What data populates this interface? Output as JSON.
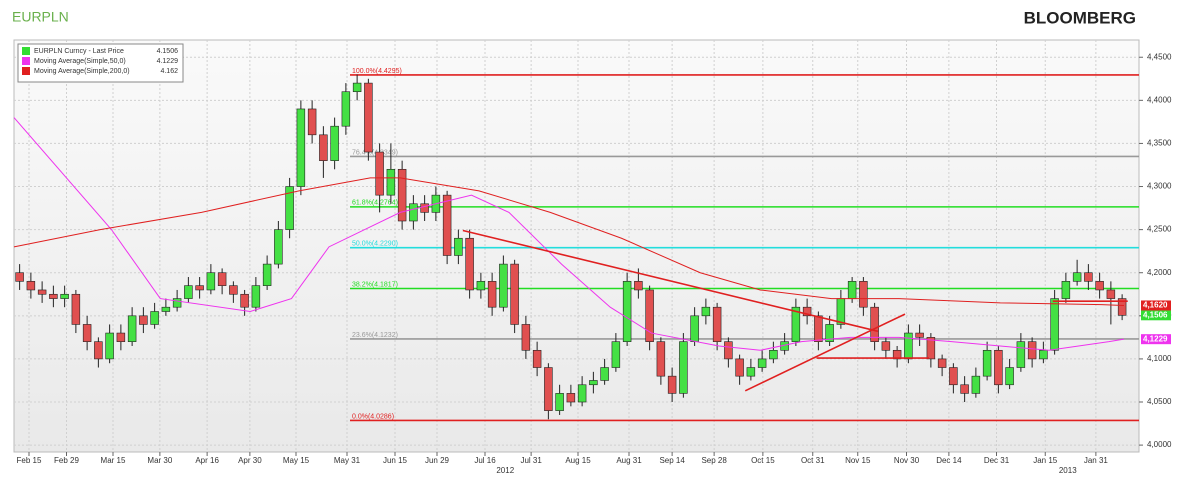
{
  "title": "EURPLN",
  "brand": "BLOOMBERG",
  "chart_data": {
    "type": "candlestick",
    "x": [
      1.5,
      4.5,
      7.5,
      10.5,
      13.5,
      16.5,
      19.5,
      22.5,
      25.5,
      28.5,
      31.5,
      34.5,
      37.5,
      40.5,
      43.5,
      46.5,
      49.5,
      52.5,
      55.5,
      58.5,
      61.5,
      64.5,
      67.5,
      70.5,
      73.5,
      76.5,
      79.5,
      82.5,
      85.5,
      88.5,
      91.5,
      94.5,
      97.5,
      100.5,
      103.5,
      106.5,
      109.5,
      112.5,
      115.5,
      118.5,
      121.5,
      124.5,
      127.5,
      130.5,
      133.5,
      136.5,
      139.5,
      142.5,
      145.5,
      148.5,
      151.5,
      154.5,
      157.5,
      160.5,
      163.5,
      166.5,
      169.5,
      172.5,
      175.5,
      178.5,
      181.5,
      184.5,
      187.5,
      190.5,
      193.5,
      196.5,
      199.5,
      202.5,
      205.5,
      208.5,
      211.5,
      214.5,
      217.5,
      220.5,
      223.5,
      226.5,
      229.5,
      232.5,
      235.5,
      238.5,
      241.5,
      244.5,
      247.5,
      250.5,
      253.5,
      256.5,
      259.5,
      262.5,
      265.5,
      268.5,
      271.5,
      274.5,
      277.5,
      280.5,
      283.5,
      286.5,
      289.5,
      292.5,
      295.5
    ],
    "open": [
      4.2,
      4.19,
      4.18,
      4.175,
      4.17,
      4.175,
      4.14,
      4.12,
      4.1,
      4.13,
      4.12,
      4.15,
      4.14,
      4.155,
      4.16,
      4.17,
      4.185,
      4.18,
      4.2,
      4.185,
      4.175,
      4.16,
      4.185,
      4.21,
      4.25,
      4.3,
      4.39,
      4.36,
      4.33,
      4.37,
      4.41,
      4.42,
      4.34,
      4.29,
      4.32,
      4.26,
      4.28,
      4.27,
      4.29,
      4.22,
      4.24,
      4.18,
      4.19,
      4.16,
      4.21,
      4.14,
      4.11,
      4.09,
      4.04,
      4.06,
      4.05,
      4.07,
      4.075,
      4.09,
      4.12,
      4.19,
      4.18,
      4.12,
      4.08,
      4.06,
      4.12,
      4.15,
      4.16,
      4.12,
      4.1,
      4.08,
      4.09,
      4.1,
      4.11,
      4.12,
      4.16,
      4.15,
      4.12,
      4.14,
      4.17,
      4.19,
      4.16,
      4.12,
      4.11,
      4.1,
      4.13,
      4.125,
      4.1,
      4.09,
      4.07,
      4.06,
      4.08,
      4.11,
      4.07,
      4.09,
      4.12,
      4.1,
      4.11,
      4.17,
      4.19,
      4.2,
      4.19,
      4.18,
      4.17
    ],
    "high": [
      4.21,
      4.2,
      4.19,
      4.185,
      4.185,
      4.18,
      4.15,
      4.125,
      4.14,
      4.14,
      4.16,
      4.16,
      4.165,
      4.17,
      4.18,
      4.195,
      4.195,
      4.21,
      4.205,
      4.19,
      4.18,
      4.195,
      4.22,
      4.26,
      4.31,
      4.4,
      4.4,
      4.37,
      4.38,
      4.42,
      4.43,
      4.425,
      4.35,
      4.35,
      4.33,
      4.29,
      4.29,
      4.3,
      4.295,
      4.25,
      4.25,
      4.2,
      4.2,
      4.22,
      4.215,
      4.15,
      4.12,
      4.095,
      4.07,
      4.07,
      4.08,
      4.085,
      4.1,
      4.13,
      4.2,
      4.205,
      4.185,
      4.125,
      4.09,
      4.13,
      4.16,
      4.17,
      4.165,
      4.125,
      4.105,
      4.1,
      4.11,
      4.12,
      4.13,
      4.17,
      4.17,
      4.155,
      4.15,
      4.18,
      4.195,
      4.195,
      4.165,
      4.125,
      4.115,
      4.14,
      4.14,
      4.13,
      4.105,
      4.095,
      4.08,
      4.09,
      4.12,
      4.115,
      4.1,
      4.13,
      4.125,
      4.12,
      4.18,
      4.2,
      4.215,
      4.21,
      4.2,
      4.19,
      4.175
    ],
    "low": [
      4.18,
      4.17,
      4.165,
      4.16,
      4.16,
      4.13,
      4.11,
      4.09,
      4.095,
      4.11,
      4.115,
      4.13,
      4.135,
      4.15,
      4.155,
      4.165,
      4.17,
      4.175,
      4.175,
      4.165,
      4.15,
      4.155,
      4.18,
      4.205,
      4.24,
      4.29,
      4.35,
      4.31,
      4.32,
      4.36,
      4.4,
      4.33,
      4.27,
      4.28,
      4.25,
      4.25,
      4.26,
      4.26,
      4.21,
      4.21,
      4.17,
      4.17,
      4.15,
      4.155,
      4.13,
      4.1,
      4.08,
      4.03,
      4.035,
      4.045,
      4.045,
      4.06,
      4.07,
      4.085,
      4.115,
      4.17,
      4.11,
      4.07,
      4.05,
      4.055,
      4.115,
      4.14,
      4.11,
      4.09,
      4.07,
      4.075,
      4.085,
      4.095,
      4.105,
      4.115,
      4.14,
      4.11,
      4.115,
      4.135,
      4.165,
      4.15,
      4.11,
      4.1,
      4.09,
      4.095,
      4.115,
      4.09,
      4.08,
      4.06,
      4.05,
      4.055,
      4.075,
      4.06,
      4.065,
      4.085,
      4.09,
      4.095,
      4.105,
      4.165,
      4.185,
      4.18,
      4.17,
      4.14,
      4.145
    ],
    "close": [
      4.19,
      4.18,
      4.175,
      4.17,
      4.175,
      4.14,
      4.12,
      4.1,
      4.13,
      4.12,
      4.15,
      4.14,
      4.155,
      4.16,
      4.17,
      4.185,
      4.18,
      4.2,
      4.185,
      4.175,
      4.16,
      4.185,
      4.21,
      4.25,
      4.3,
      4.39,
      4.36,
      4.33,
      4.37,
      4.41,
      4.42,
      4.34,
      4.29,
      4.32,
      4.26,
      4.28,
      4.27,
      4.29,
      4.22,
      4.24,
      4.18,
      4.19,
      4.16,
      4.21,
      4.14,
      4.11,
      4.09,
      4.04,
      4.06,
      4.05,
      4.07,
      4.075,
      4.09,
      4.12,
      4.19,
      4.18,
      4.12,
      4.08,
      4.06,
      4.12,
      4.15,
      4.16,
      4.12,
      4.1,
      4.08,
      4.09,
      4.1,
      4.11,
      4.12,
      4.16,
      4.15,
      4.12,
      4.14,
      4.17,
      4.19,
      4.16,
      4.12,
      4.11,
      4.1,
      4.13,
      4.125,
      4.1,
      4.09,
      4.07,
      4.06,
      4.08,
      4.11,
      4.07,
      4.09,
      4.12,
      4.1,
      4.11,
      4.17,
      4.19,
      4.2,
      4.19,
      4.18,
      4.17,
      4.1506
    ],
    "up_color": "#44e044",
    "down_color": "#e05050",
    "series": [
      {
        "name": "EURPLN Curncy - Last Price",
        "color": "#33dd33",
        "last": 4.1506,
        "tag": {
          "value": 4.1506,
          "label": "4,1506"
        }
      },
      {
        "name": "Moving Average(Simple,50,0)",
        "color": "#ee33ee",
        "last": 4.1229,
        "tag": {
          "value": 4.1229,
          "label": "4,1229"
        },
        "x": [
          0,
          26,
          39,
          63,
          74,
          84,
          103,
          122,
          132,
          146,
          159,
          170,
          188,
          199,
          210,
          223,
          236,
          250,
          263,
          276,
          292,
          296
        ],
        "values": [
          4.38,
          4.25,
          4.17,
          4.155,
          4.17,
          4.23,
          4.27,
          4.29,
          4.27,
          4.21,
          4.16,
          4.13,
          4.115,
          4.11,
          4.12,
          4.125,
          4.125,
          4.12,
          4.115,
          4.11,
          4.12,
          4.123
        ]
      },
      {
        "name": "Moving Average(Simple,200,0)",
        "color": "#e02020",
        "last": 4.162,
        "tag": {
          "value": 4.162,
          "label": "4,1620"
        },
        "x": [
          0,
          23,
          50,
          76,
          95,
          103,
          124,
          143,
          162,
          183,
          199,
          218,
          236,
          263,
          290,
          296
        ],
        "values": [
          4.23,
          4.25,
          4.27,
          4.295,
          4.31,
          4.31,
          4.295,
          4.27,
          4.24,
          4.2,
          4.18,
          4.17,
          4.17,
          4.165,
          4.163,
          4.162
        ]
      }
    ],
    "levels": [
      {
        "label": "100.0%(4.4295)",
        "value": 4.4295,
        "color": "#e02020"
      },
      {
        "label": "76.4%(4.3349)",
        "value": 4.3349,
        "color": "#999999"
      },
      {
        "label": "61.8%(4.2764)",
        "value": 4.2764,
        "color": "#22dd22"
      },
      {
        "label": "50.0%(4.2290)",
        "value": 4.229,
        "color": "#22dddd"
      },
      {
        "label": "38.2%(4.1817)",
        "value": 4.1817,
        "color": "#22dd22"
      },
      {
        "label": "23.6%(4.1232)",
        "value": 4.1232,
        "color": "#999999"
      },
      {
        "label": "0.0%(4.0286)",
        "value": 4.0286,
        "color": "#e02020"
      }
    ],
    "level_start": 89.6,
    "trendlines": [
      {
        "x": [
          119.7,
          230.4
        ],
        "y": [
          4.249,
          4.132
        ]
      },
      {
        "x": [
          195,
          237.6
        ],
        "y": [
          4.063,
          4.152
        ]
      },
      {
        "x": [
          214,
          244
        ],
        "y": [
          4.101,
          4.101
        ]
      },
      {
        "x": [
          277,
          297
        ],
        "y": [
          4.167,
          4.167
        ]
      }
    ],
    "trend_color": "#e02020",
    "xlim": [
      0,
      300
    ],
    "xticks": [
      {
        "value": 4,
        "label": "Feb 15"
      },
      {
        "value": 14,
        "label": "Feb 29"
      },
      {
        "value": 26.4,
        "label": "Mar 15"
      },
      {
        "value": 38.9,
        "label": "Mar 30"
      },
      {
        "value": 51.5,
        "label": "Apr 16"
      },
      {
        "value": 62.9,
        "label": "Apr 30"
      },
      {
        "value": 75.2,
        "label": "May 15"
      },
      {
        "value": 88.8,
        "label": "May 31"
      },
      {
        "value": 101.6,
        "label": "Jun 15"
      },
      {
        "value": 112.8,
        "label": "Jun 29"
      },
      {
        "value": 125.6,
        "label": "Jul 16"
      },
      {
        "value": 137.9,
        "label": "Jul 31"
      },
      {
        "value": 150.4,
        "label": "Aug 15"
      },
      {
        "value": 164,
        "label": "Aug 31"
      },
      {
        "value": 175.5,
        "label": "Sep 14"
      },
      {
        "value": 186.7,
        "label": "Sep 28"
      },
      {
        "value": 199.7,
        "label": "Oct 15"
      },
      {
        "value": 213,
        "label": "Oct 31"
      },
      {
        "value": 225,
        "label": "Nov 15"
      },
      {
        "value": 238,
        "label": "Nov 30"
      },
      {
        "value": 249.3,
        "label": "Dec 14"
      },
      {
        "value": 262,
        "label": "Dec 31"
      },
      {
        "value": 275,
        "label": "Jan 15"
      },
      {
        "value": 288.5,
        "label": "Jan 31"
      }
    ],
    "year_labels": [
      {
        "value": 131,
        "label": "2012"
      },
      {
        "value": 281,
        "label": "2013"
      }
    ],
    "ylim": [
      3.992,
      4.47
    ],
    "yticks": [
      {
        "value": 4.0,
        "label": "4,0000"
      },
      {
        "value": 4.05,
        "label": "4,0500"
      },
      {
        "value": 4.1,
        "label": "4,1000"
      },
      {
        "value": 4.15,
        "label": "4,1500"
      },
      {
        "value": 4.2,
        "label": "4,2000"
      },
      {
        "value": 4.25,
        "label": "4,2500"
      },
      {
        "value": 4.3,
        "label": "4,3000"
      },
      {
        "value": 4.35,
        "label": "4,3500"
      },
      {
        "value": 4.4,
        "label": "4,4000"
      },
      {
        "value": 4.45,
        "label": "4,4500"
      }
    ],
    "grid": true
  }
}
